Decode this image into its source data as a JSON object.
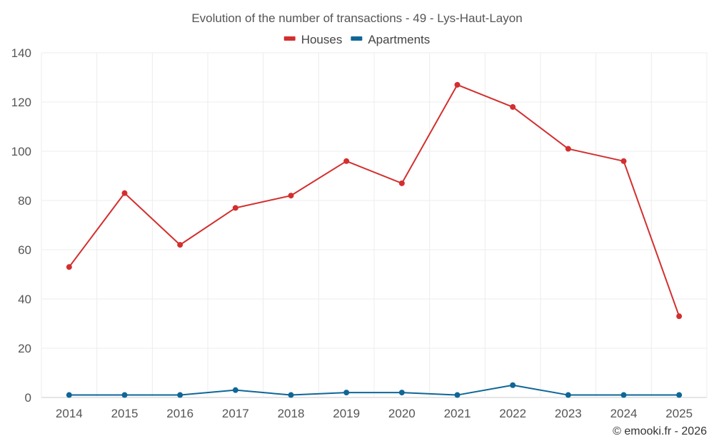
{
  "chart_data": {
    "type": "line",
    "title": "Evolution of the number of transactions - 49 - Lys-Haut-Layon",
    "categories": [
      "2014",
      "2015",
      "2016",
      "2017",
      "2018",
      "2019",
      "2020",
      "2021",
      "2022",
      "2023",
      "2024",
      "2025"
    ],
    "series": [
      {
        "name": "Houses",
        "color": "#d32f2f",
        "values": [
          53,
          83,
          62,
          77,
          82,
          96,
          87,
          127,
          118,
          101,
          96,
          33
        ]
      },
      {
        "name": "Apartments",
        "color": "#0f6697",
        "values": [
          1,
          1,
          1,
          3,
          1,
          2,
          2,
          1,
          5,
          1,
          1,
          1
        ]
      }
    ],
    "ylim": [
      0,
      140
    ],
    "yticks": [
      0,
      20,
      40,
      60,
      80,
      100,
      120,
      140
    ],
    "ytick_labels": [
      "0",
      "20",
      "40",
      "60",
      "80",
      "100",
      "120",
      "140"
    ],
    "xlabel": "",
    "ylabel": "",
    "legend_position": "top-center",
    "grid": true
  },
  "credit": "© emooki.fr - 2026"
}
